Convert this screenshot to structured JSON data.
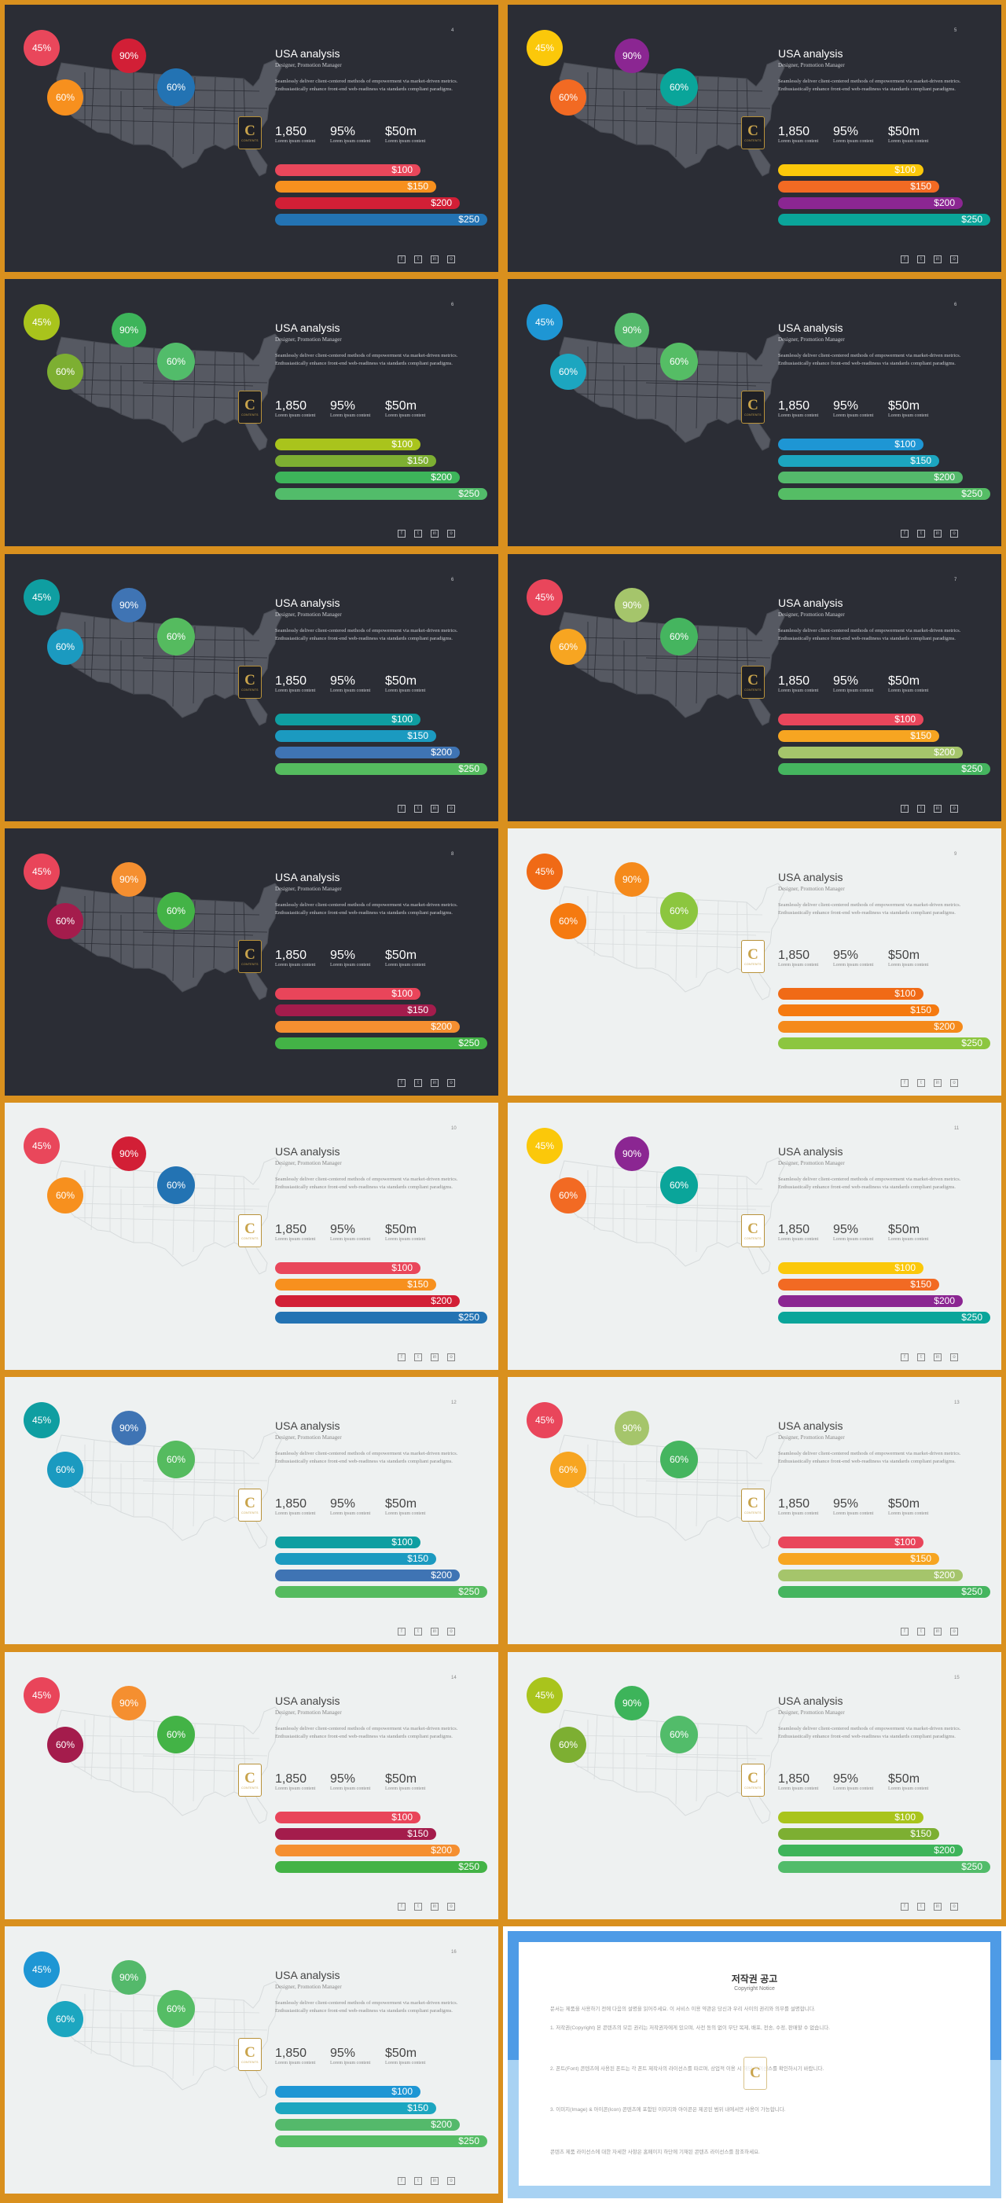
{
  "common": {
    "title": "USA analysis",
    "subtitle": "Designer, Promotion Manager",
    "description": "Seamlessly deliver client-centered methods of empowerment via market-driven metrics. Enthusiastically enhance front-end web-readiness via standards compliant paradigms.",
    "stats": [
      {
        "value": "1,850",
        "label": "Lorem ipsum content"
      },
      {
        "value": "95%",
        "label": "Lorem ipsum content"
      },
      {
        "value": "$50m",
        "label": "Lorem ipsum content"
      }
    ],
    "bubble_labels": [
      "45%",
      "90%",
      "60%",
      "60%"
    ],
    "bar_labels": [
      "$100",
      "$150",
      "$200",
      "$250"
    ],
    "social_icons": [
      "facebook-icon",
      "twitter-icon",
      "linkedin-icon",
      "instagram-icon"
    ],
    "social_glyphs": [
      "f",
      "t",
      "in",
      "o"
    ],
    "logo_letter": "C",
    "logo_text": "CONTENTS"
  },
  "slides": [
    {
      "page": "4",
      "theme": "dark",
      "colors": [
        "#e9475b",
        "#d21f36",
        "#2373b3",
        "#f7901e"
      ],
      "bar_colors": [
        "#e9475b",
        "#f7901e",
        "#d21f36",
        "#2373b3"
      ]
    },
    {
      "page": "5",
      "theme": "dark",
      "colors": [
        "#fbc80a",
        "#8b2692",
        "#0aa59a",
        "#f26a23"
      ],
      "bar_colors": [
        "#fbc80a",
        "#f26a23",
        "#8b2692",
        "#0aa59a"
      ]
    },
    {
      "page": "6",
      "theme": "dark",
      "colors": [
        "#a9c41c",
        "#3db45a",
        "#52bc6a",
        "#7daf32"
      ],
      "bar_colors": [
        "#a9c41c",
        "#7daf32",
        "#3db45a",
        "#52bc6a"
      ]
    },
    {
      "page": "6",
      "theme": "dark",
      "colors": [
        "#1e96d4",
        "#54b96b",
        "#55bd65",
        "#1ca6c0"
      ],
      "bar_colors": [
        "#1e96d4",
        "#1ca6c0",
        "#54b96b",
        "#55bd65"
      ]
    },
    {
      "page": "6",
      "theme": "dark",
      "colors": [
        "#0f9ea1",
        "#3f74b4",
        "#55bb5f",
        "#1b9ac0"
      ],
      "bar_colors": [
        "#0f9ea1",
        "#1b9ac0",
        "#3f74b4",
        "#55bb5f"
      ]
    },
    {
      "page": "7",
      "theme": "dark",
      "colors": [
        "#e9465b",
        "#a5c56b",
        "#45b55f",
        "#f7a521"
      ],
      "bar_colors": [
        "#e9465b",
        "#f7a521",
        "#a5c56b",
        "#45b55f"
      ]
    },
    {
      "page": "8",
      "theme": "dark",
      "colors": [
        "#e9455a",
        "#f58f30",
        "#43b346",
        "#a41c4c"
      ],
      "bar_colors": [
        "#e9455a",
        "#a41c4c",
        "#f58f30",
        "#43b346"
      ]
    },
    {
      "page": "9",
      "theme": "light",
      "colors": [
        "#f06a16",
        "#f58a1b",
        "#8cc63f",
        "#f57a10"
      ],
      "bar_colors": [
        "#f06a16",
        "#f57a10",
        "#f58a1b",
        "#8cc63f"
      ]
    },
    {
      "page": "10",
      "theme": "light",
      "colors": [
        "#e9475b",
        "#d21f36",
        "#2373b3",
        "#f7901e"
      ],
      "bar_colors": [
        "#e9475b",
        "#f7901e",
        "#d21f36",
        "#2373b3"
      ]
    },
    {
      "page": "11",
      "theme": "light",
      "colors": [
        "#fbc80a",
        "#8b2692",
        "#0aa59a",
        "#f26a23"
      ],
      "bar_colors": [
        "#fbc80a",
        "#f26a23",
        "#8b2692",
        "#0aa59a"
      ]
    },
    {
      "page": "12",
      "theme": "light",
      "colors": [
        "#0f9ea1",
        "#3f74b4",
        "#55bb5f",
        "#1b9ac0"
      ],
      "bar_colors": [
        "#0f9ea1",
        "#1b9ac0",
        "#3f74b4",
        "#55bb5f"
      ]
    },
    {
      "page": "13",
      "theme": "light",
      "colors": [
        "#e9465b",
        "#a5c56b",
        "#45b55f",
        "#f7a521"
      ],
      "bar_colors": [
        "#e9465b",
        "#f7a521",
        "#a5c56b",
        "#45b55f"
      ]
    },
    {
      "page": "14",
      "theme": "light",
      "colors": [
        "#e9455a",
        "#f58f30",
        "#43b346",
        "#a41c4c"
      ],
      "bar_colors": [
        "#e9455a",
        "#a41c4c",
        "#f58f30",
        "#43b346"
      ]
    },
    {
      "page": "15",
      "theme": "light",
      "colors": [
        "#a9c41c",
        "#3db45a",
        "#52bc6a",
        "#7daf32"
      ],
      "bar_colors": [
        "#a9c41c",
        "#7daf32",
        "#3db45a",
        "#52bc6a"
      ]
    },
    {
      "page": "16",
      "theme": "light",
      "colors": [
        "#1e96d4",
        "#54b96b",
        "#55bd65",
        "#1ca6c0"
      ],
      "bar_colors": [
        "#1e96d4",
        "#1ca6c0",
        "#54b96b",
        "#55bd65"
      ]
    }
  ],
  "copyright": {
    "title": "저작권 공고",
    "subtitle": "Copyright Notice",
    "paragraphs": [
      "문서는 제품을 사용하기 전에 다음의 설명을 읽어주세요. 이 서비스 이용 약관은 당신과 우리 사이의 권리와 의무를 설명합니다.",
      "1. 저작권(Copyright) 본 콘텐츠의 모든 권리는 저작권자에게 있으며, 사전 동의 없이 무단 복제, 배포, 전송, 수정, 판매할 수 없습니다.",
      "2. 폰트(Font) 콘텐츠에 사용된 폰트는 각 폰트 제작사의 라이선스를 따르며, 상업적 이용 시 해당 라이선스를 확인하시기 바랍니다.",
      "3. 이미지(Image) & 아이콘(Icon) 콘텐츠에 포함된 이미지와 아이콘은 제공된 범위 내에서만 사용이 가능합니다.",
      "콘텐츠 제품 라이선스에 대한 자세한 사항은 홈페이지 하단에 기재된 콘텐츠 라이선스를 참조하세요."
    ],
    "logo_letter": "C"
  }
}
